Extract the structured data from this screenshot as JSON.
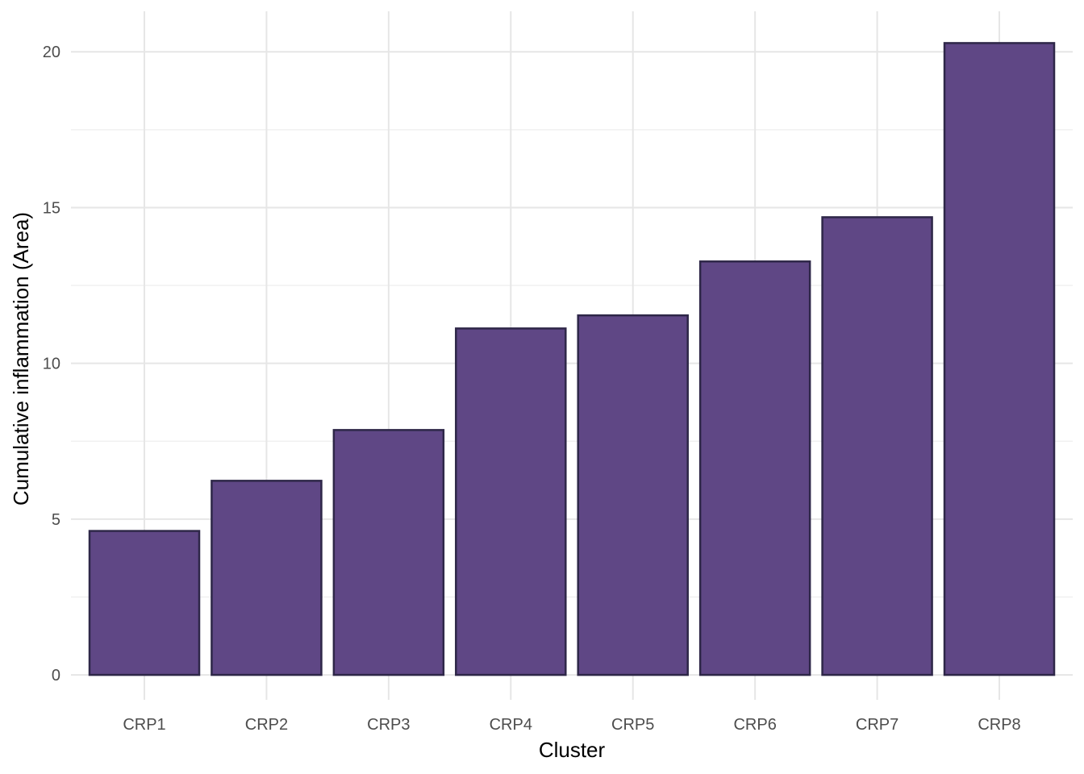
{
  "chart_data": {
    "type": "bar",
    "categories": [
      "CRP1",
      "CRP2",
      "CRP3",
      "CRP4",
      "CRP5",
      "CRP6",
      "CRP7",
      "CRP8"
    ],
    "values": [
      4.62,
      6.23,
      7.86,
      11.12,
      11.54,
      13.27,
      14.69,
      20.28
    ],
    "xlabel": "Cluster",
    "ylabel": "Cumulative inflammation (Area)",
    "ylim": [
      -0.8,
      21.3
    ],
    "yticks": [
      0,
      5,
      10,
      15,
      20
    ],
    "grid": true,
    "legend": "none",
    "colors": {
      "bar_fill": "#5f4785",
      "bar_stroke": "#2e2748"
    }
  }
}
